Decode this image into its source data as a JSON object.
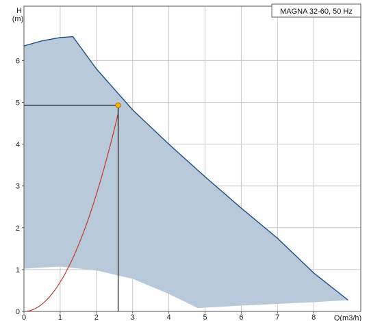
{
  "chart_data": {
    "type": "area",
    "title": "MAGNA 32-60, 50 Hz",
    "xlabel": "Q(m3/h)",
    "ylabel_line1": "H",
    "ylabel_line2": "(m)",
    "xlim": [
      0,
      9.3
    ],
    "ylim": [
      0,
      7.3
    ],
    "x_ticks": [
      0,
      1,
      2,
      3,
      4,
      5,
      6,
      7,
      8
    ],
    "y_ticks": [
      0,
      1,
      2,
      3,
      4,
      5,
      6
    ],
    "grid": true,
    "colors": {
      "operating_range_fill": "#b8c9da",
      "max_curve": "#1f4e85",
      "system_curve": "#c0392b",
      "duty_point": "#f5b800",
      "grid": "#c8c8c8",
      "guide_lines": "#000000"
    },
    "operating_range": {
      "max_curve": [
        {
          "x": 0,
          "y": 6.35
        },
        {
          "x": 0.5,
          "y": 6.47
        },
        {
          "x": 1.0,
          "y": 6.55
        },
        {
          "x": 1.35,
          "y": 6.57
        },
        {
          "x": 2.0,
          "y": 5.8
        },
        {
          "x": 3.0,
          "y": 4.82
        },
        {
          "x": 4.0,
          "y": 4.0
        },
        {
          "x": 5.0,
          "y": 3.22
        },
        {
          "x": 6.0,
          "y": 2.47
        },
        {
          "x": 7.0,
          "y": 1.75
        },
        {
          "x": 8.0,
          "y": 0.92
        },
        {
          "x": 8.95,
          "y": 0.27
        }
      ],
      "min_curve": [
        {
          "x": 8.95,
          "y": 0.27
        },
        {
          "x": 8.0,
          "y": 0.22
        },
        {
          "x": 6.0,
          "y": 0.14
        },
        {
          "x": 4.8,
          "y": 0.08
        },
        {
          "x": 4.0,
          "y": 0.42
        },
        {
          "x": 3.0,
          "y": 0.78
        },
        {
          "x": 2.0,
          "y": 0.98
        },
        {
          "x": 1.0,
          "y": 1.07
        },
        {
          "x": 0.5,
          "y": 1.05
        },
        {
          "x": 0,
          "y": 1.02
        }
      ]
    },
    "system_curve": {
      "k": 0.7,
      "x_end": 2.6
    },
    "duty_point": {
      "x": 2.6,
      "y": 4.93
    }
  }
}
